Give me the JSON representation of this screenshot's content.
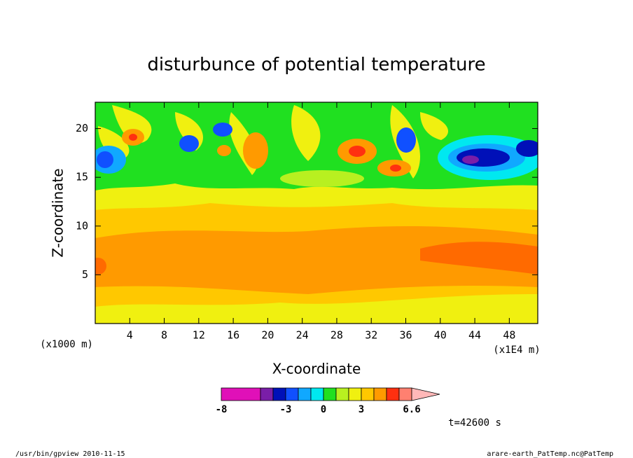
{
  "chart_data": {
    "type": "contour",
    "title": "disturbunce of potential temperature",
    "x_label": "X-coordinate",
    "y_label": "Z-coordinate",
    "x_unit": "(x1000 m)",
    "x_unit2": "(x1E4 m)",
    "xlim": [
      0,
      51.3
    ],
    "xticks": [
      4,
      8,
      12,
      16,
      20,
      24,
      28,
      32,
      36,
      40,
      44,
      48
    ],
    "ylim": [
      0,
      22.7
    ],
    "yticks": [
      5,
      10,
      15,
      20
    ],
    "colorbar": {
      "levels": [
        -8,
        -5,
        -4,
        -3,
        -2,
        -1,
        0,
        1,
        2,
        3,
        4,
        5,
        6,
        6.6
      ],
      "colors": [
        "#e010b8",
        "#7a1ea8",
        "#0010b8",
        "#1050ff",
        "#10a8ff",
        "#00e8f0",
        "#20e020",
        "#b8f020",
        "#f0f010",
        "#ffc800",
        "#ff9a00",
        "#ff3010",
        "#ff8070"
      ],
      "over_color": "#ffb8b8",
      "ticks": [
        -8,
        -3,
        0,
        3,
        6.6
      ]
    },
    "time_label": "t=42600 s",
    "footer_left": "/usr/bin/gpview  2010-11-15",
    "footer_right": "arare-earth_PatTemp.nc@PatTemp"
  }
}
